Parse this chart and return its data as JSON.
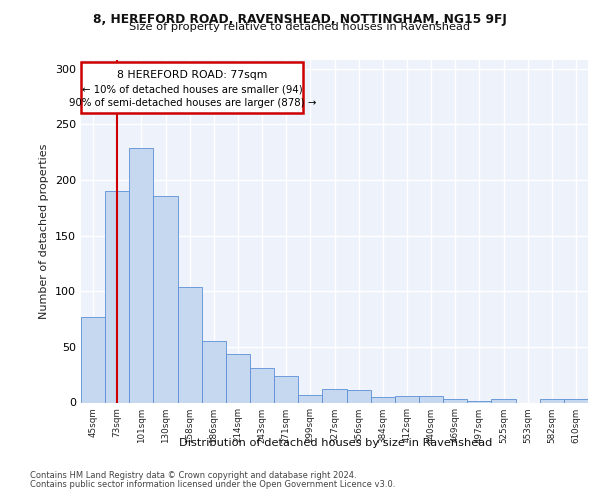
{
  "title1": "8, HEREFORD ROAD, RAVENSHEAD, NOTTINGHAM, NG15 9FJ",
  "title2": "Size of property relative to detached houses in Ravenshead",
  "xlabel": "Distribution of detached houses by size in Ravenshead",
  "ylabel": "Number of detached properties",
  "footnote1": "Contains HM Land Registry data © Crown copyright and database right 2024.",
  "footnote2": "Contains public sector information licensed under the Open Government Licence v3.0.",
  "categories": [
    "45sqm",
    "73sqm",
    "101sqm",
    "130sqm",
    "158sqm",
    "186sqm",
    "214sqm",
    "243sqm",
    "271sqm",
    "299sqm",
    "327sqm",
    "356sqm",
    "384sqm",
    "412sqm",
    "440sqm",
    "469sqm",
    "497sqm",
    "525sqm",
    "553sqm",
    "582sqm",
    "610sqm"
  ],
  "values": [
    77,
    190,
    229,
    186,
    104,
    55,
    44,
    31,
    24,
    7,
    12,
    11,
    5,
    6,
    6,
    3,
    1,
    3,
    0,
    3,
    3
  ],
  "bar_color": "#c5d8f0",
  "bar_edge_color": "#5b8ed6",
  "vline_x_index": 1,
  "annotation_title": "8 HEREFORD ROAD: 77sqm",
  "annotation_line2": "← 10% of detached houses are smaller (94)",
  "annotation_line3": "90% of semi-detached houses are larger (878) →",
  "vline_color": "#cc0000",
  "annotation_box_edge": "#cc0000",
  "yticks": [
    0,
    50,
    100,
    150,
    200,
    250,
    300
  ],
  "ylim": [
    0,
    308
  ],
  "background_color": "#eef2fa"
}
